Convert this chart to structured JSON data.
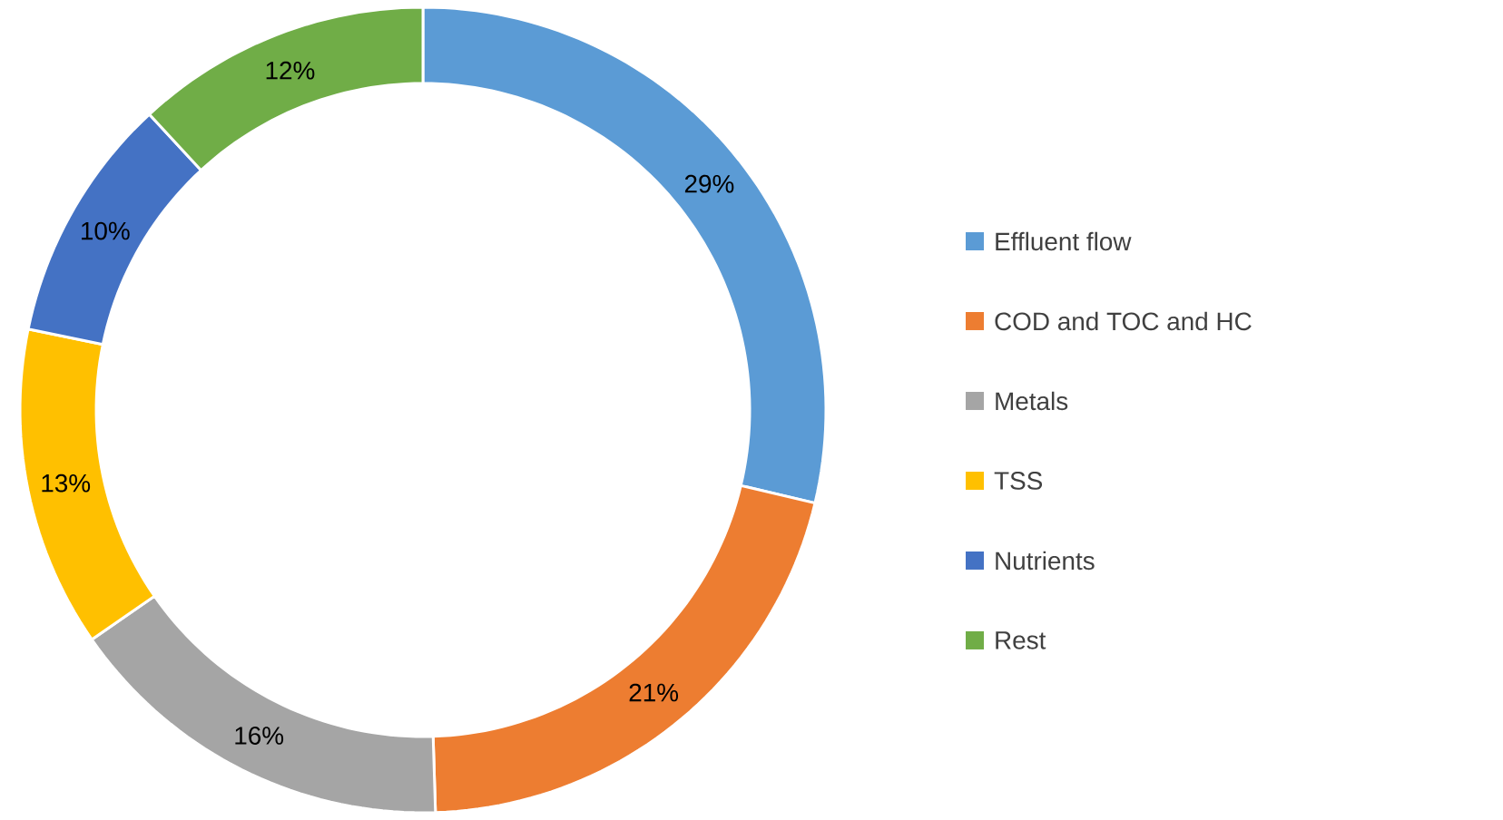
{
  "chart_data": {
    "type": "donut",
    "categories": [
      "Effluent flow",
      "COD and TOC and HC",
      "Metals",
      "TSS",
      "Nutrients",
      "Rest"
    ],
    "values": [
      29,
      21,
      16,
      13,
      10,
      12
    ],
    "value_labels": [
      "29%",
      "21%",
      "16%",
      "13%",
      "10%",
      "12%"
    ],
    "colors": [
      "#5b9bd5",
      "#ed7d31",
      "#a5a5a5",
      "#ffc000",
      "#4472c4",
      "#70ad47"
    ],
    "legend": "right"
  }
}
